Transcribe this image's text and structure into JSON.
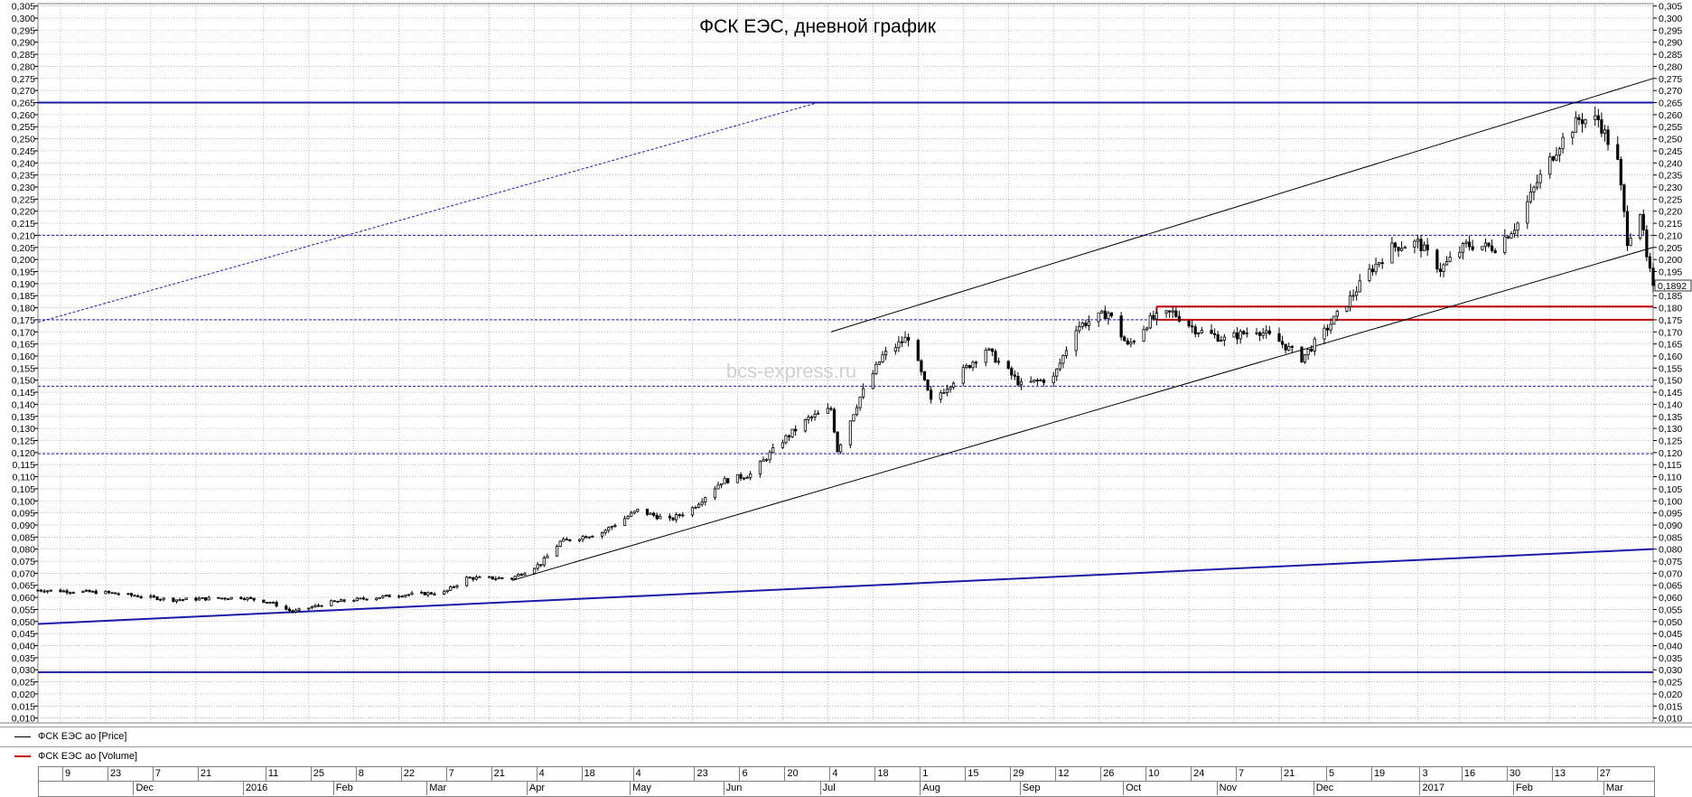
{
  "window": {
    "legend": [
      {
        "label": "ФСК ЕЭС ао [Price]",
        "color": "#000000"
      },
      {
        "label": "ФСК ЕЭС ао [Volume]",
        "color": "#c00000"
      }
    ]
  },
  "chart_data": {
    "type": "candlestick",
    "title": "ФСК ЕЭС, дневной график",
    "watermark": "bcs-express.ru",
    "ylim": [
      0.008,
      0.306
    ],
    "y_ticks": [
      "0,305",
      "0,300",
      "0,295",
      "0,290",
      "0,285",
      "0,280",
      "0,275",
      "0,270",
      "0,265",
      "0,260",
      "0,255",
      "0,250",
      "0,245",
      "0,240",
      "0,235",
      "0,230",
      "0,225",
      "0,220",
      "0,215",
      "0,210",
      "0,205",
      "0,200",
      "0,195",
      "0,190",
      "0,185",
      "0,180",
      "0,175",
      "0,170",
      "0,165",
      "0,160",
      "0,155",
      "0,150",
      "0,145",
      "0,140",
      "0,135",
      "0,130",
      "0,125",
      "0,120",
      "0,115",
      "0,110",
      "0,105",
      "0,100",
      "0,095",
      "0,090",
      "0,085",
      "0,080",
      "0,075",
      "0,070",
      "0,065",
      "0,060",
      "0,055",
      "0,050",
      "0,045",
      "0,040",
      "0,035",
      "0,030",
      "0,025",
      "0,020",
      "0,015",
      "0,010"
    ],
    "last_price_label": "0,1892",
    "last_price": 0.1892,
    "x_ticks_days": [
      "9",
      "23",
      "7",
      "21",
      "11",
      "25",
      "8",
      "22",
      "7",
      "21",
      "4",
      "18",
      "4",
      "23",
      "6",
      "20",
      "4",
      "18",
      "1",
      "15",
      "29",
      "12",
      "26",
      "10",
      "24",
      "7",
      "21",
      "5",
      "19",
      "3",
      "16",
      "30",
      "13",
      "27"
    ],
    "x_ticks_periods": [
      "Dec",
      "2016",
      "Feb",
      "Mar",
      "Apr",
      "May",
      "Jun",
      "Jul",
      "Aug",
      "Sep",
      "Oct",
      "Nov",
      "Dec",
      "2017",
      "Feb",
      "Mar"
    ],
    "x_range": [
      "2015-11-02",
      "2017-03-17"
    ],
    "x_tick_day_dates": [
      "2015-11-09",
      "2015-11-23",
      "2015-12-07",
      "2015-12-21",
      "2016-01-11",
      "2016-01-25",
      "2016-02-08",
      "2016-02-22",
      "2016-03-07",
      "2016-03-21",
      "2016-04-04",
      "2016-04-18",
      "2016-05-04",
      "2016-05-23",
      "2016-06-06",
      "2016-06-20",
      "2016-07-04",
      "2016-07-18",
      "2016-08-01",
      "2016-08-15",
      "2016-08-29",
      "2016-09-12",
      "2016-09-26",
      "2016-10-10",
      "2016-10-24",
      "2016-11-07",
      "2016-11-21",
      "2016-12-05",
      "2016-12-19",
      "2017-01-03",
      "2017-01-16",
      "2017-01-30",
      "2017-02-13",
      "2017-02-27"
    ],
    "x_tick_period_dates": [
      "2015-12-01",
      "2016-01-04",
      "2016-02-01",
      "2016-03-01",
      "2016-04-01",
      "2016-05-03",
      "2016-06-01",
      "2016-07-01",
      "2016-08-01",
      "2016-09-01",
      "2016-10-03",
      "2016-11-01",
      "2016-12-01",
      "2017-01-03",
      "2017-02-01",
      "2017-03-01"
    ],
    "price_path": [
      [
        "2015-11-02",
        0.063
      ],
      [
        "2015-11-23",
        0.062
      ],
      [
        "2015-12-14",
        0.059
      ],
      [
        "2016-01-04",
        0.06
      ],
      [
        "2016-01-13",
        0.058
      ],
      [
        "2016-01-20",
        0.054
      ],
      [
        "2016-02-01",
        0.058
      ],
      [
        "2016-02-15",
        0.06
      ],
      [
        "2016-02-22",
        0.061
      ],
      [
        "2016-03-07",
        0.062
      ],
      [
        "2016-03-14",
        0.068
      ],
      [
        "2016-03-28",
        0.068
      ],
      [
        "2016-04-06",
        0.074
      ],
      [
        "2016-04-12",
        0.083
      ],
      [
        "2016-04-25",
        0.087
      ],
      [
        "2016-05-06",
        0.096
      ],
      [
        "2016-05-16",
        0.092
      ],
      [
        "2016-05-23",
        0.097
      ],
      [
        "2016-06-01",
        0.108
      ],
      [
        "2016-06-10",
        0.111
      ],
      [
        "2016-06-20",
        0.125
      ],
      [
        "2016-06-28",
        0.134
      ],
      [
        "2016-07-05",
        0.138
      ],
      [
        "2016-07-07",
        0.121
      ],
      [
        "2016-07-14",
        0.143
      ],
      [
        "2016-07-21",
        0.16
      ],
      [
        "2016-07-29",
        0.168
      ],
      [
        "2016-08-05",
        0.141
      ],
      [
        "2016-08-12",
        0.15
      ],
      [
        "2016-08-22",
        0.163
      ],
      [
        "2016-09-02",
        0.148
      ],
      [
        "2016-09-12",
        0.151
      ],
      [
        "2016-09-19",
        0.172
      ],
      [
        "2016-09-29",
        0.178
      ],
      [
        "2016-10-05",
        0.164
      ],
      [
        "2016-10-12",
        0.175
      ],
      [
        "2016-10-19",
        0.178
      ],
      [
        "2016-10-26",
        0.171
      ],
      [
        "2016-11-04",
        0.167
      ],
      [
        "2016-11-14",
        0.171
      ],
      [
        "2016-11-21",
        0.166
      ],
      [
        "2016-11-28",
        0.159
      ],
      [
        "2016-12-05",
        0.17
      ],
      [
        "2016-12-12",
        0.182
      ],
      [
        "2016-12-19",
        0.195
      ],
      [
        "2016-12-26",
        0.205
      ],
      [
        "2017-01-03",
        0.207
      ],
      [
        "2017-01-10",
        0.196
      ],
      [
        "2017-01-18",
        0.206
      ],
      [
        "2017-01-27",
        0.205
      ],
      [
        "2017-02-03",
        0.215
      ],
      [
        "2017-02-09",
        0.232
      ],
      [
        "2017-02-16",
        0.248
      ],
      [
        "2017-02-22",
        0.258
      ],
      [
        "2017-02-28",
        0.258
      ],
      [
        "2017-03-06",
        0.24
      ],
      [
        "2017-03-09",
        0.208
      ],
      [
        "2017-03-13",
        0.22
      ],
      [
        "2017-03-15",
        0.2
      ],
      [
        "2017-03-17",
        0.1892
      ]
    ],
    "horizontal_levels": [
      {
        "value": 0.265,
        "style": "solid",
        "color": "#1a1aa6"
      },
      {
        "value": 0.21,
        "style": "dotted",
        "color": "#1a1aa6"
      },
      {
        "value": 0.175,
        "style": "dotted",
        "color": "#1a1aa6"
      },
      {
        "value": 0.1475,
        "style": "dotted",
        "color": "#1a1aa6"
      },
      {
        "value": 0.1195,
        "style": "dotted",
        "color": "#1a1aa6"
      },
      {
        "value": 0.029,
        "style": "solid",
        "color": "#1a1aa6"
      }
    ],
    "trend_lines": [
      {
        "from": [
          "2015-11-02",
          0.049
        ],
        "to": [
          "2017-03-17",
          0.08
        ],
        "color": "#1a1aa6",
        "style": "solid"
      },
      {
        "from": [
          "2016-03-28",
          0.067
        ],
        "to": [
          "2017-03-17",
          0.205
        ],
        "color": "#000000",
        "style": "solid"
      },
      {
        "from": [
          "2016-07-05",
          0.17
        ],
        "to": [
          "2017-03-17",
          0.275
        ],
        "color": "#000000",
        "style": "solid"
      },
      {
        "from": [
          "2015-11-02",
          0.174
        ],
        "to": [
          "2016-07-01",
          0.265
        ],
        "color": "#1a1aa6",
        "style": "dotted"
      }
    ],
    "resistance_zone": {
      "from": "2016-10-14",
      "to": "2017-03-17",
      "low": 0.175,
      "high": 0.1805,
      "color": "#c00000"
    },
    "colors": {
      "grid": "#8c8cc8",
      "frame": "#7f7f7f",
      "candle": "#000000"
    }
  }
}
